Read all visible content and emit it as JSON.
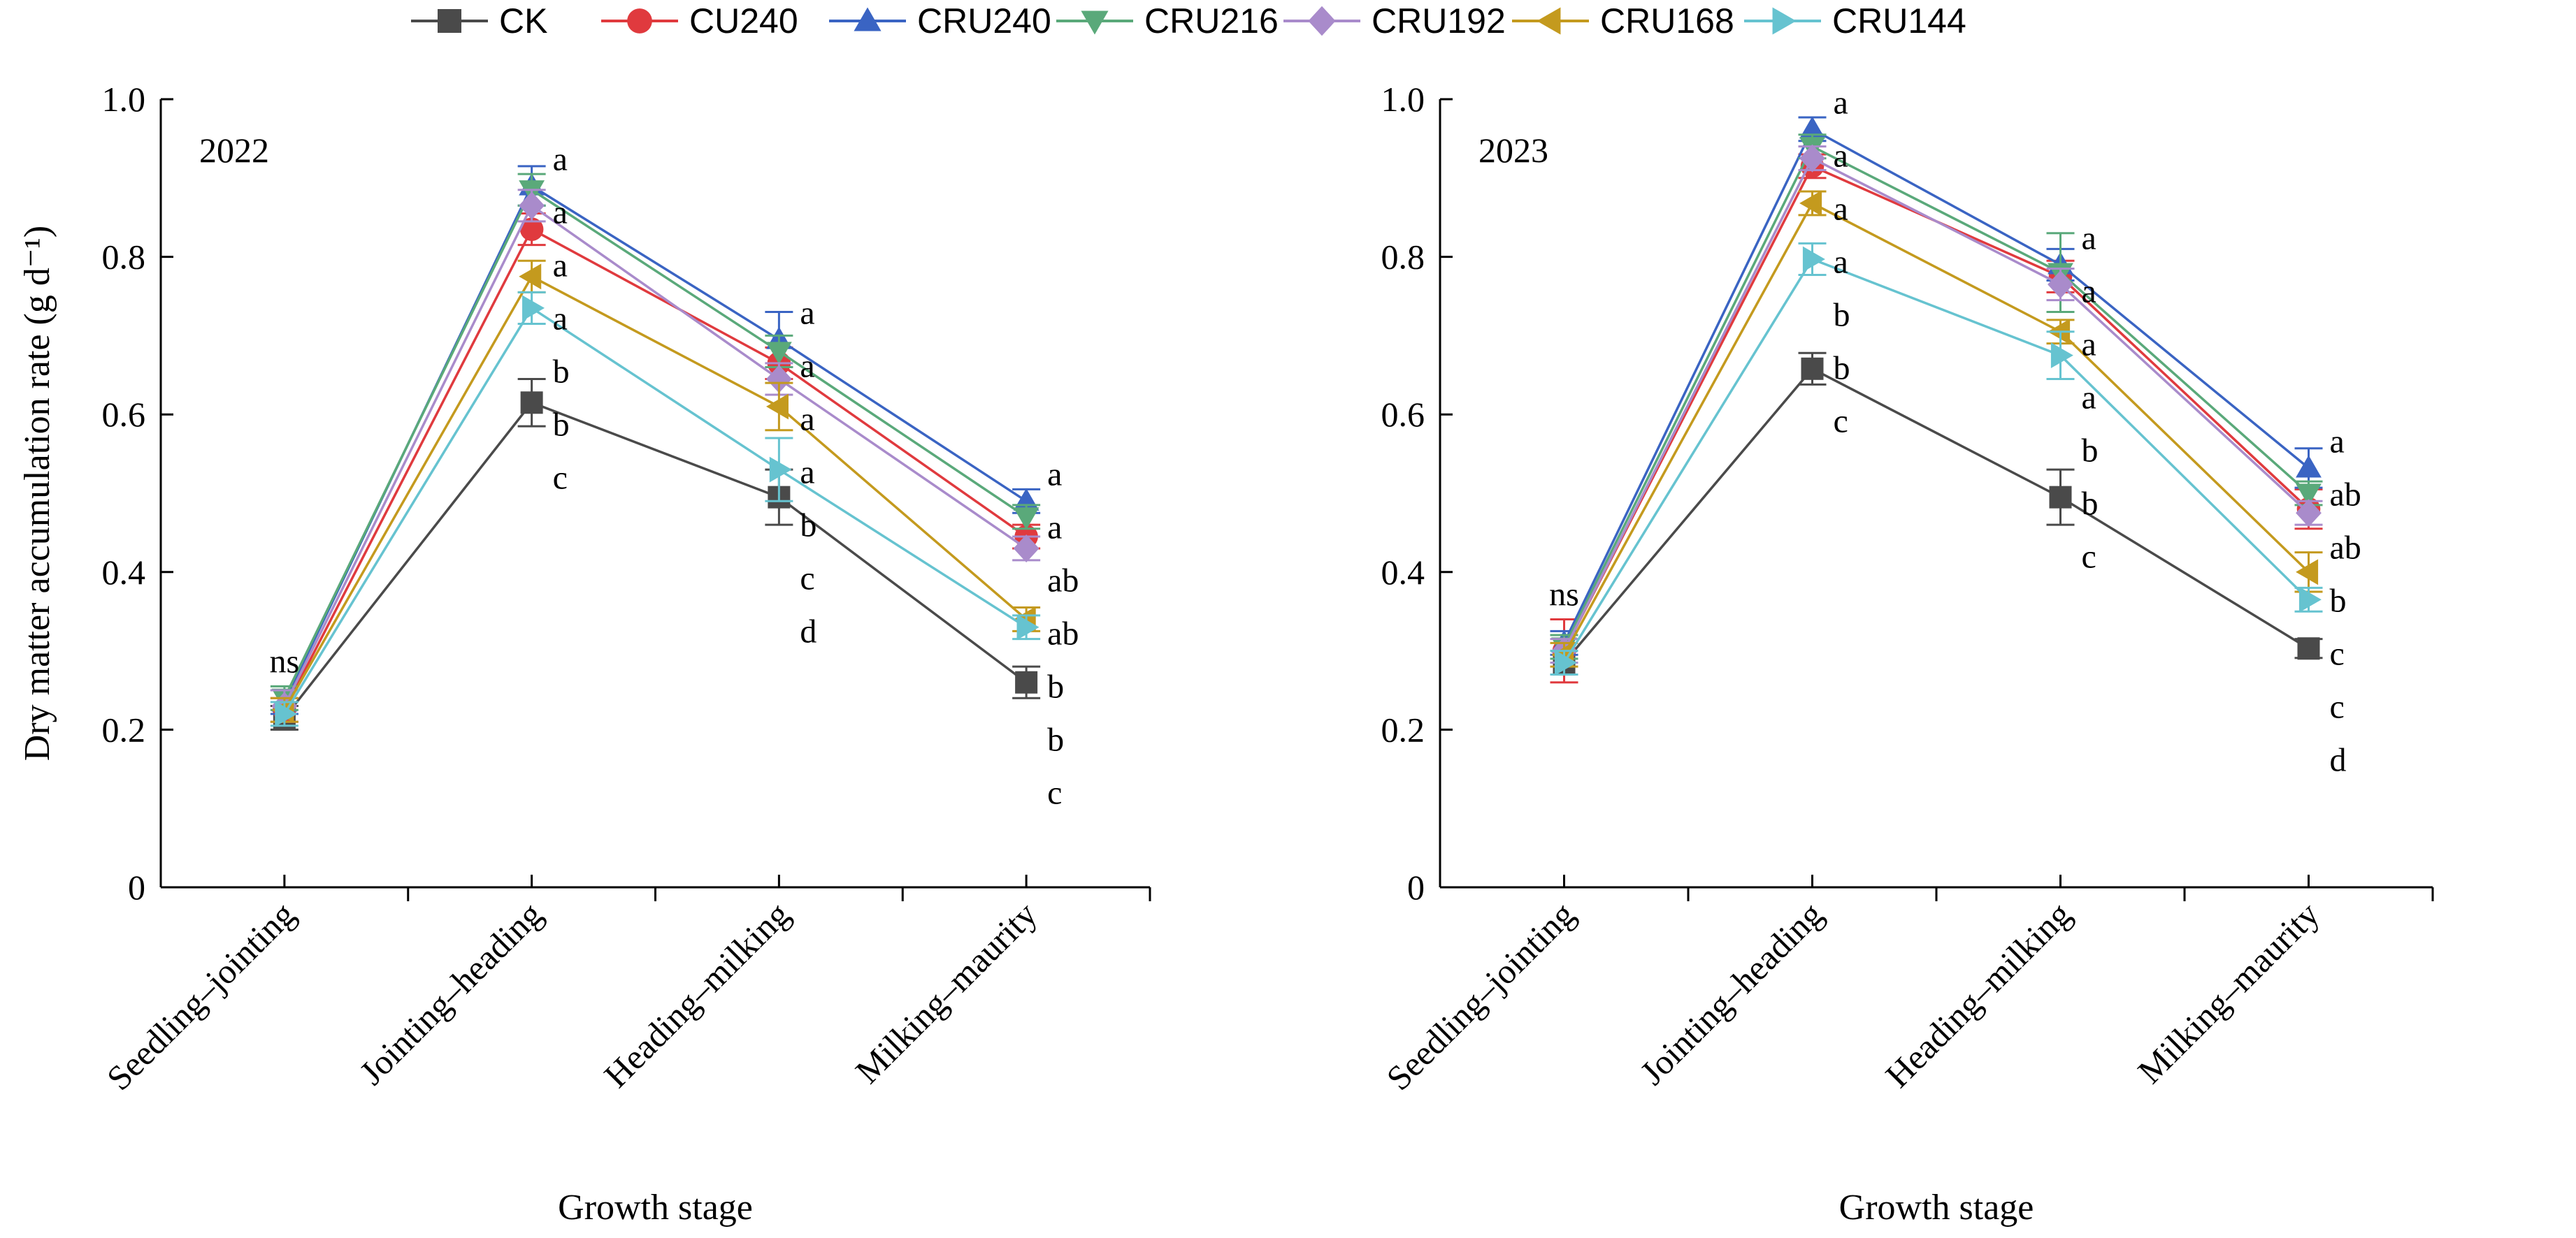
{
  "legend": [
    {
      "name": "CK",
      "color": "#4a4a4a",
      "marker": "square"
    },
    {
      "name": "CU240",
      "color": "#e03a3e",
      "marker": "circle"
    },
    {
      "name": "CRU240",
      "color": "#3a64c3",
      "marker": "triangle-up"
    },
    {
      "name": "CRU216",
      "color": "#5aa97a",
      "marker": "triangle-down"
    },
    {
      "name": "CRU192",
      "color": "#a98bcb",
      "marker": "diamond"
    },
    {
      "name": "CRU168",
      "color": "#c49a1e",
      "marker": "triangle-left"
    },
    {
      "name": "CRU144",
      "color": "#66c3d0",
      "marker": "triangle-right"
    }
  ],
  "chart_data": [
    {
      "type": "line",
      "year_label": "2022",
      "ylabel": "Dry matter accumulation rate (g d⁻¹)",
      "xlabel": "Growth stage",
      "categories": [
        "Seedling–jointing",
        "Jointing–heading",
        "Heading–milking",
        "Milking–maurity"
      ],
      "ylim": [
        0,
        1.0
      ],
      "yticks": [
        "0",
        "0.2",
        "0.4",
        "0.6",
        "0.8",
        "1.0"
      ],
      "series": [
        {
          "name": "CK",
          "values": [
            0.215,
            0.615,
            0.495,
            0.26
          ],
          "errors": [
            0.015,
            0.03,
            0.035,
            0.02
          ]
        },
        {
          "name": "CU240",
          "values": [
            0.225,
            0.835,
            0.665,
            0.445
          ],
          "errors": [
            0.015,
            0.02,
            0.02,
            0.015
          ]
        },
        {
          "name": "CRU240",
          "values": [
            0.235,
            0.89,
            0.695,
            0.49
          ],
          "errors": [
            0.015,
            0.025,
            0.035,
            0.015
          ]
        },
        {
          "name": "CRU216",
          "values": [
            0.24,
            0.885,
            0.68,
            0.47
          ],
          "errors": [
            0.015,
            0.02,
            0.02,
            0.015
          ]
        },
        {
          "name": "CRU192",
          "values": [
            0.23,
            0.865,
            0.645,
            0.43
          ],
          "errors": [
            0.02,
            0.02,
            0.02,
            0.015
          ]
        },
        {
          "name": "CRU168",
          "values": [
            0.225,
            0.775,
            0.61,
            0.34
          ],
          "errors": [
            0.015,
            0.02,
            0.03,
            0.015
          ]
        },
        {
          "name": "CRU144",
          "values": [
            0.22,
            0.735,
            0.53,
            0.33
          ],
          "errors": [
            0.015,
            0.02,
            0.04,
            0.015
          ]
        }
      ],
      "significance": [
        {
          "category": "Seedling–jointing",
          "labels": [
            "ns"
          ]
        },
        {
          "category": "Jointing–heading",
          "labels": [
            "a",
            "a",
            "a",
            "a",
            "b",
            "b",
            "c"
          ]
        },
        {
          "category": "Heading–milking",
          "labels": [
            "a",
            "a",
            "a",
            "a",
            "b",
            "c",
            "d"
          ]
        },
        {
          "category": "Milking–maurity",
          "labels": [
            "a",
            "a",
            "ab",
            "ab",
            "b",
            "b",
            "c"
          ]
        }
      ]
    },
    {
      "type": "line",
      "year_label": "2023",
      "ylabel": "",
      "xlabel": "Growth stage",
      "categories": [
        "Seedling–jointing",
        "Jointing–heading",
        "Heading–milking",
        "Milking–maurity"
      ],
      "ylim": [
        0,
        1.0
      ],
      "yticks": [
        "0",
        "0.2",
        "0.4",
        "0.6",
        "0.8",
        "1.0"
      ],
      "series": [
        {
          "name": "CK",
          "values": [
            0.285,
            0.658,
            0.495,
            0.303
          ],
          "errors": [
            0.015,
            0.02,
            0.035,
            0.012
          ]
        },
        {
          "name": "CU240",
          "values": [
            0.3,
            0.915,
            0.775,
            0.48
          ],
          "errors": [
            0.04,
            0.015,
            0.02,
            0.025
          ]
        },
        {
          "name": "CRU240",
          "values": [
            0.31,
            0.962,
            0.79,
            0.532
          ],
          "errors": [
            0.015,
            0.015,
            0.02,
            0.025
          ]
        },
        {
          "name": "CRU216",
          "values": [
            0.305,
            0.94,
            0.78,
            0.5
          ],
          "errors": [
            0.015,
            0.015,
            0.05,
            0.015
          ]
        },
        {
          "name": "CRU192",
          "values": [
            0.3,
            0.925,
            0.765,
            0.475
          ],
          "errors": [
            0.015,
            0.015,
            0.02,
            0.015
          ]
        },
        {
          "name": "CRU168",
          "values": [
            0.295,
            0.868,
            0.705,
            0.4
          ],
          "errors": [
            0.015,
            0.015,
            0.015,
            0.025
          ]
        },
        {
          "name": "CRU144",
          "values": [
            0.285,
            0.797,
            0.675,
            0.365
          ],
          "errors": [
            0.015,
            0.02,
            0.03,
            0.015
          ]
        }
      ],
      "significance": [
        {
          "category": "Seedling–jointing",
          "labels": [
            "ns"
          ]
        },
        {
          "category": "Jointing–heading",
          "labels": [
            "a",
            "a",
            "a",
            "a",
            "b",
            "b",
            "c"
          ]
        },
        {
          "category": "Heading–milking",
          "labels": [
            "a",
            "a",
            "a",
            "a",
            "b",
            "b",
            "c"
          ]
        },
        {
          "category": "Milking–maurity",
          "labels": [
            "a",
            "ab",
            "ab",
            "b",
            "c",
            "c",
            "d"
          ]
        }
      ]
    }
  ]
}
